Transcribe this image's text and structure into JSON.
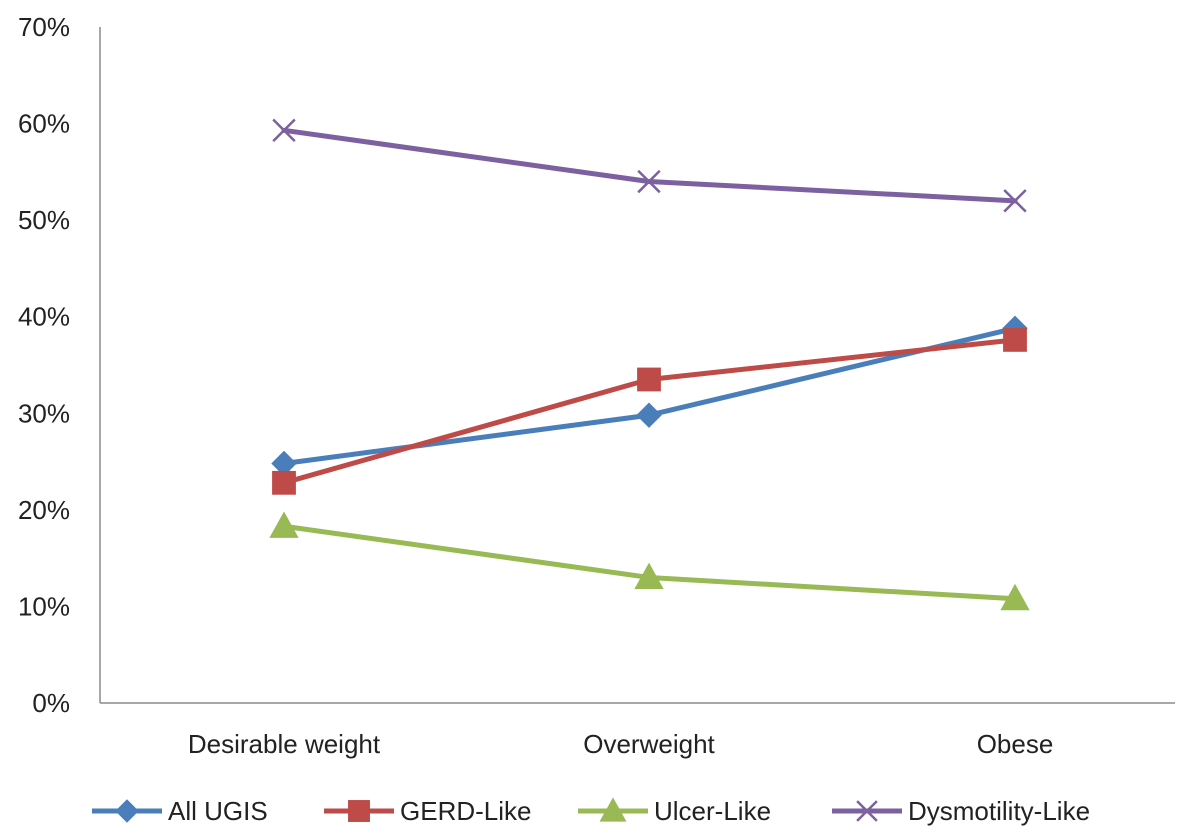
{
  "chart_data": {
    "type": "line",
    "categories": [
      "Desirable weight",
      "Overweight",
      "Obese"
    ],
    "y_ticks": [
      "0%",
      "10%",
      "20%",
      "30%",
      "40%",
      "50%",
      "60%",
      "70%"
    ],
    "ylim": [
      0,
      70
    ],
    "grid": false,
    "legend_position": "bottom",
    "series": [
      {
        "name": "All UGIS",
        "values": [
          24.8,
          29.8,
          38.8
        ],
        "color": "#4a7ebb",
        "marker": "diamond"
      },
      {
        "name": "GERD-Like",
        "values": [
          22.8,
          33.5,
          37.6
        ],
        "color": "#be4b48",
        "marker": "square"
      },
      {
        "name": "Ulcer-Like",
        "values": [
          18.3,
          13.0,
          10.8
        ],
        "color": "#98b954",
        "marker": "triangle"
      },
      {
        "name": "Dysmotility-Like",
        "values": [
          59.3,
          54.0,
          52.0
        ],
        "color": "#7d60a0",
        "marker": "x"
      }
    ]
  }
}
